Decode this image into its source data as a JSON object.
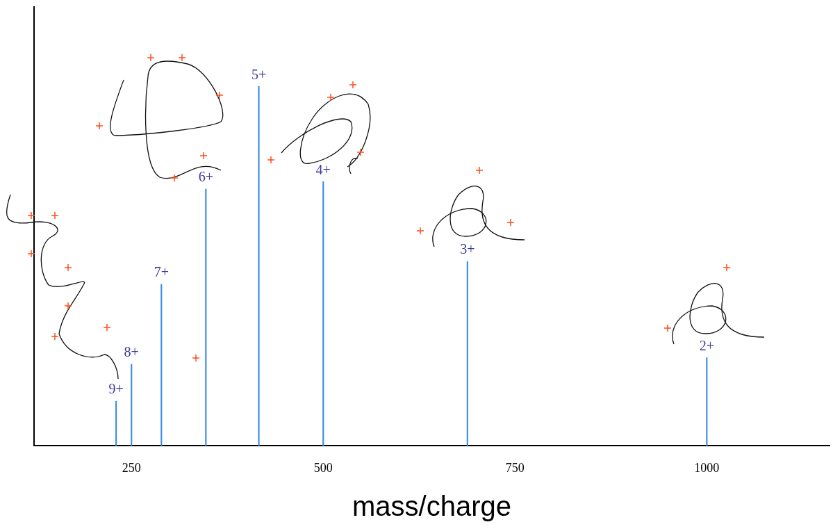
{
  "chart_data": {
    "type": "bar",
    "x_label": "mass/charge",
    "x": [
      230,
      250,
      289,
      347,
      416,
      500,
      688,
      1000
    ],
    "values": [
      10.2,
      18.6,
      36.8,
      58.5,
      81.9,
      60.2,
      42.0,
      20.1
    ],
    "labels": [
      "9+",
      "8+",
      "7+",
      "6+",
      "5+",
      "4+",
      "3+",
      "2+"
    ],
    "color": "#3d8fe0",
    "xlim": [
      123,
      1160
    ],
    "xticks": [
      250,
      500,
      750,
      1000
    ],
    "ylim": [
      0,
      100
    ],
    "grid": false,
    "tick_labels": "x"
  }
}
